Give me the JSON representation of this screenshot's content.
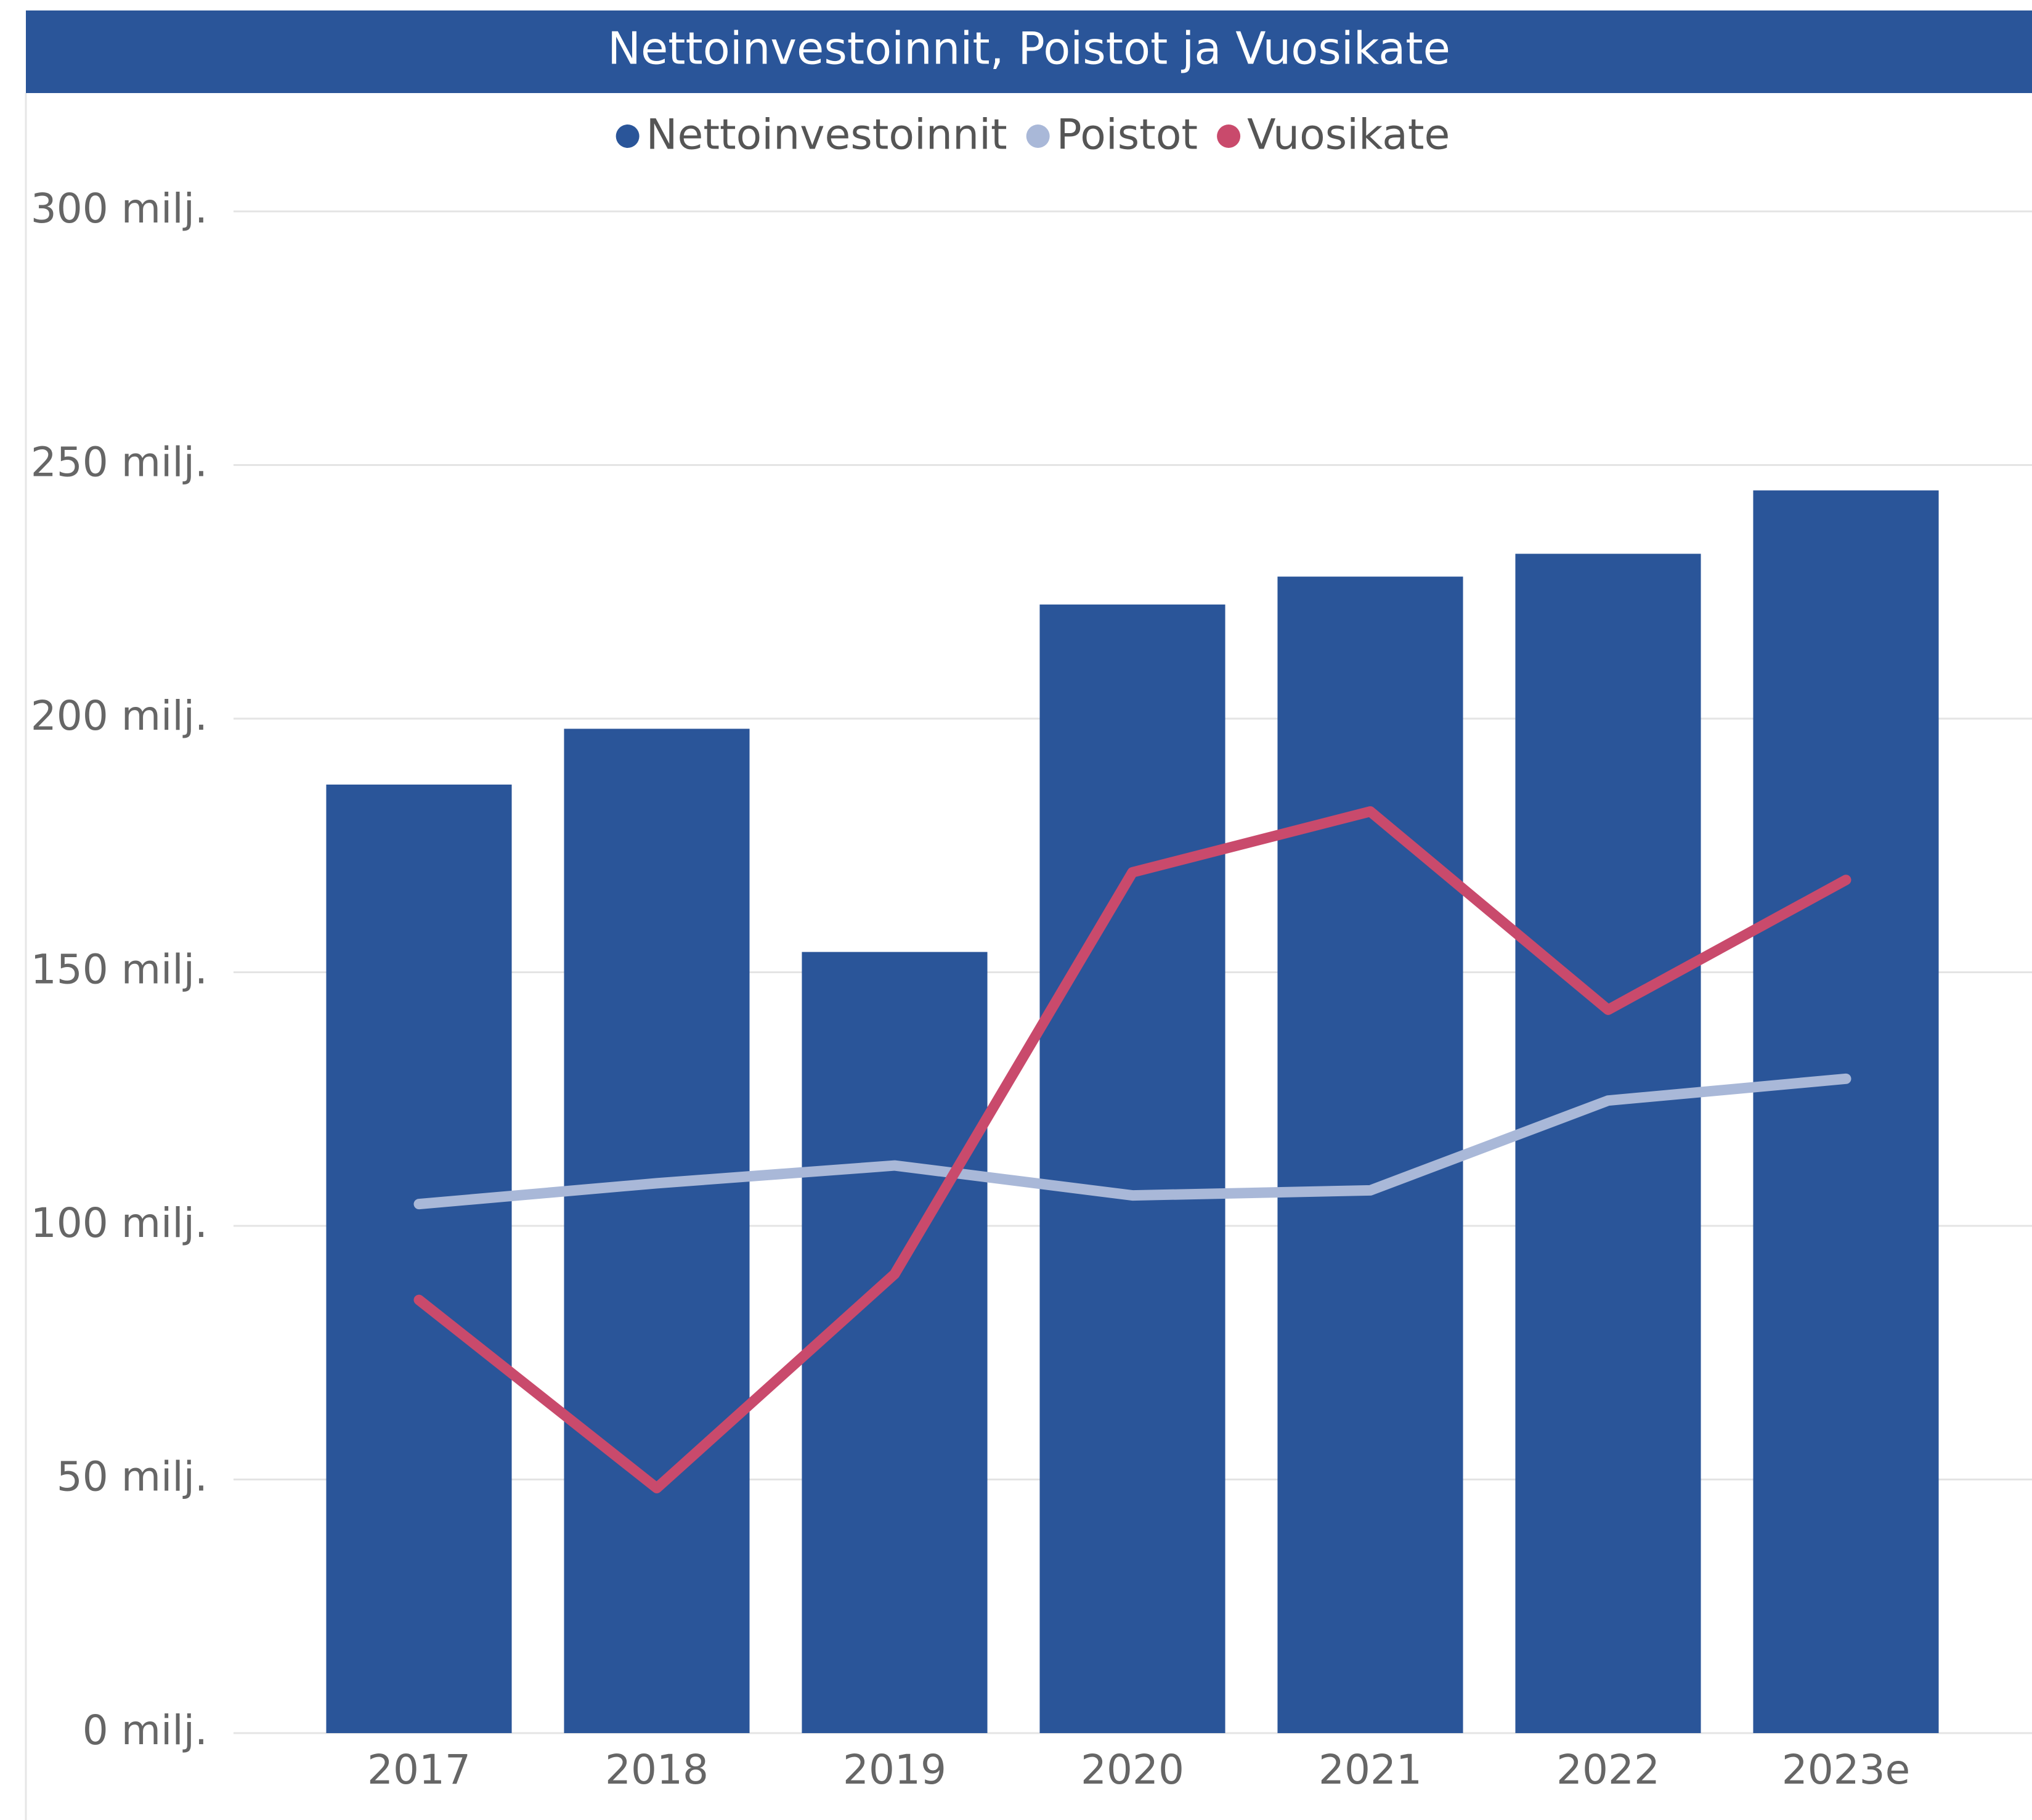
{
  "chart_data": {
    "type": "bar_line",
    "title": "Nettoinvestoinnit, Poistot ja Vuosikate",
    "categories": [
      "2017",
      "2018",
      "2019",
      "2020",
      "2021",
      "2022",
      "2023e"
    ],
    "series": [
      {
        "name": "Nettoinvestoinnit",
        "type": "bar",
        "color": "#2a5599",
        "values": [
          187,
          198,
          154,
          222.5,
          228,
          232.5,
          245
        ]
      },
      {
        "name": "Poistot",
        "type": "line",
        "color": "#a9b8d8",
        "values": [
          104.3,
          108.4,
          111.9,
          106,
          107,
          124.7,
          129
        ]
      },
      {
        "name": "Vuosikate",
        "type": "line",
        "color": "#c94a6c",
        "values": [
          85.4,
          48.3,
          90.5,
          169.7,
          181.7,
          142.6,
          168.2
        ]
      }
    ],
    "ylim": [
      0,
      300
    ],
    "yticks": [
      {
        "value": 0,
        "label": "0 milj."
      },
      {
        "value": 50,
        "label": "50 milj."
      },
      {
        "value": 100,
        "label": "100 milj."
      },
      {
        "value": 150,
        "label": "150 milj."
      },
      {
        "value": 200,
        "label": "200 milj."
      },
      {
        "value": 250,
        "label": "250 milj."
      },
      {
        "value": 300,
        "label": "300 milj."
      }
    ],
    "grid": true,
    "legend": "top"
  }
}
